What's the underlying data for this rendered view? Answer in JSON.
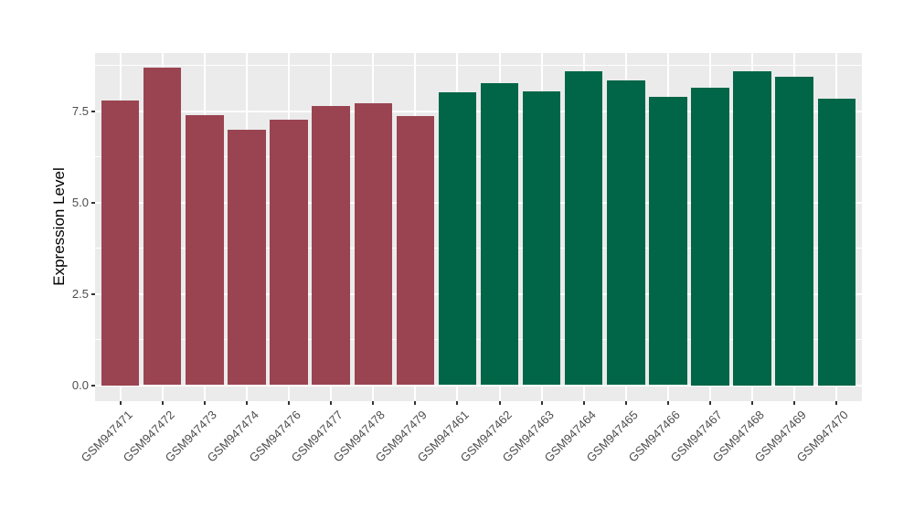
{
  "chart_data": {
    "type": "bar",
    "title": "",
    "xlabel": "",
    "ylabel": "Expression Level",
    "legend_position": "none",
    "grid": true,
    "panel_background": "#EBEBEB",
    "grid_color": "#FFFFFF",
    "ylim": [
      -0.44,
      9.09
    ],
    "y_axis": {
      "tick_values": [
        0,
        2.5,
        5.0,
        7.5
      ],
      "tick_labels": [
        "0.0",
        "2.5",
        "5.0",
        "7.5"
      ],
      "minor_tick_values": [
        1.25,
        3.75,
        6.25,
        8.75
      ]
    },
    "colors": {
      "maroon": "#9A4451",
      "green": "#006647"
    },
    "bars": [
      {
        "label": "GSM947471",
        "value": 7.8,
        "group": "maroon"
      },
      {
        "label": "GSM947472",
        "value": 8.69,
        "group": "maroon"
      },
      {
        "label": "GSM947473",
        "value": 7.39,
        "group": "maroon"
      },
      {
        "label": "GSM947474",
        "value": 6.98,
        "group": "maroon"
      },
      {
        "label": "GSM947476",
        "value": 7.27,
        "group": "maroon"
      },
      {
        "label": "GSM947477",
        "value": 7.64,
        "group": "maroon"
      },
      {
        "label": "GSM947478",
        "value": 7.72,
        "group": "maroon"
      },
      {
        "label": "GSM947479",
        "value": 7.36,
        "group": "maroon"
      },
      {
        "label": "GSM947461",
        "value": 8.01,
        "group": "green"
      },
      {
        "label": "GSM947462",
        "value": 8.27,
        "group": "green"
      },
      {
        "label": "GSM947463",
        "value": 8.04,
        "group": "green"
      },
      {
        "label": "GSM947464",
        "value": 8.58,
        "group": "green"
      },
      {
        "label": "GSM947465",
        "value": 8.34,
        "group": "green"
      },
      {
        "label": "GSM947466",
        "value": 7.88,
        "group": "green"
      },
      {
        "label": "GSM947467",
        "value": 8.15,
        "group": "green"
      },
      {
        "label": "GSM947468",
        "value": 8.6,
        "group": "green"
      },
      {
        "label": "GSM947469",
        "value": 8.45,
        "group": "green"
      },
      {
        "label": "GSM947470",
        "value": 7.85,
        "group": "green"
      }
    ]
  }
}
